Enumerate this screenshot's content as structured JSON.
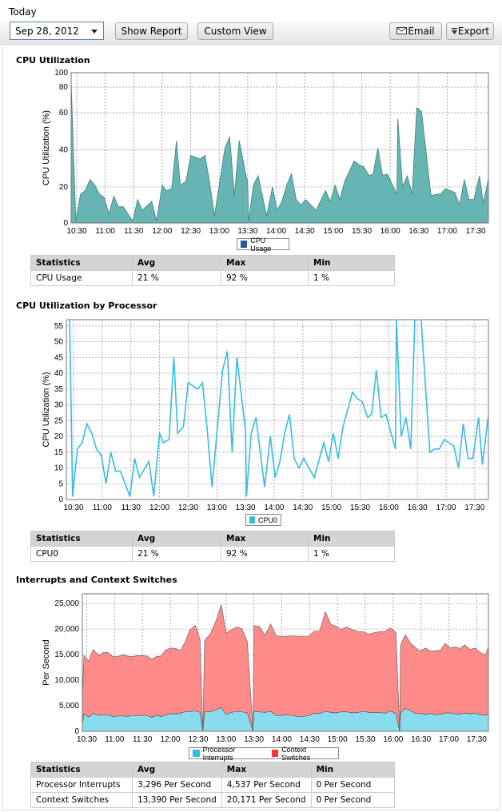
{
  "header": {
    "period_label": "Today",
    "date_value": "Sep 28, 2012",
    "show_report": "Show Report",
    "custom_view": "Custom View",
    "email": "Email",
    "export": "Export"
  },
  "colors": {
    "cpu_fill": "#66b5b3",
    "cpu_line": "#3f7f7d",
    "cpu_legend": "#1f5f99",
    "cpu0_line": "#36bde0",
    "interrupts_fill": "#88dcee",
    "interrupts_legend": "#33bbdd",
    "context_fill": "#ff8a8a",
    "context_legend": "#ff3333"
  },
  "sections": [
    {
      "title": "CPU Utilization",
      "table": {
        "headers": [
          "Statistics",
          "Avg",
          "Max",
          "Min"
        ],
        "rows": [
          [
            "CPU Usage",
            "21 %",
            "92 %",
            "1 %"
          ]
        ]
      }
    },
    {
      "title": "CPU Utilization by Processor",
      "table": {
        "headers": [
          "Statistics",
          "Avg",
          "Max",
          "Min"
        ],
        "rows": [
          [
            "CPU0",
            "21 %",
            "92 %",
            "1 %"
          ]
        ]
      }
    },
    {
      "title": "Interrupts and Context Switches",
      "table": {
        "headers": [
          "Statistics",
          "Avg",
          "Max",
          "Min"
        ],
        "rows": [
          [
            "Processor Interrupts",
            "3,296 Per Second",
            "4,537 Per Second",
            "0 Per Second"
          ],
          [
            "Context Switches",
            "13,390 Per Second",
            "20,171 Per Second",
            "0 Per Second"
          ]
        ]
      }
    }
  ],
  "chart_data": [
    {
      "type": "area",
      "ylabel": "CPU Utilization (%)",
      "ylim": [
        0,
        100
      ],
      "y_ticks": [
        0,
        20,
        40,
        60,
        80,
        100
      ],
      "y_scale": "nonlinear",
      "grid": true,
      "legend": "bottom",
      "x_ticks": [
        "10:30",
        "11:00",
        "11:30",
        "12:00",
        "12:30",
        "13:00",
        "13:30",
        "14:00",
        "14:30",
        "15:00",
        "15:30",
        "16:00",
        "16:30",
        "17:00",
        "17:30"
      ],
      "x": [
        "10:24",
        "10:29",
        "10:34",
        "10:39",
        "10:44",
        "10:49",
        "10:54",
        "10:59",
        "11:04",
        "11:09",
        "11:14",
        "11:19",
        "11:29",
        "11:34",
        "11:39",
        "11:49",
        "11:54",
        "12:00",
        "12:04",
        "12:10",
        "12:15",
        "12:19",
        "12:25",
        "12:30",
        "12:40",
        "12:45",
        "12:50",
        "12:55",
        "13:06",
        "13:11",
        "13:16",
        "13:21",
        "13:30",
        "13:31",
        "13:36",
        "13:41",
        "13:50",
        "13:56",
        "14:01",
        "14:06",
        "14:11",
        "14:16",
        "14:21",
        "14:26",
        "14:31",
        "14:42",
        "14:52",
        "14:57",
        "15:02",
        "15:07",
        "15:12",
        "15:22",
        "15:27",
        "15:32",
        "15:38",
        "15:42",
        "15:47",
        "15:52",
        "15:57",
        "16:07",
        "16:08",
        "16:13",
        "16:18",
        "16:23",
        "16:28",
        "16:33",
        "16:43",
        "16:48",
        "16:53",
        "16:58",
        "17:08",
        "17:13",
        "17:18",
        "17:23",
        "17:28",
        "17:34",
        "17:38",
        "17:44"
      ],
      "series": [
        {
          "name": "CPU Usage",
          "values": [
            92,
            1,
            16,
            18,
            24,
            21,
            16,
            14,
            5,
            15,
            9,
            9,
            1,
            13,
            7,
            12,
            1,
            21,
            18,
            19,
            45,
            21,
            23,
            37,
            35,
            37,
            22,
            4,
            41,
            47,
            15,
            45,
            22,
            1,
            21,
            26,
            4,
            20,
            7,
            12,
            21,
            27,
            13,
            10,
            13,
            7,
            18,
            12,
            21,
            13,
            23,
            34,
            32,
            31,
            26,
            27,
            41,
            26,
            27,
            16,
            57,
            20,
            26,
            16,
            64,
            61,
            15,
            16,
            16,
            19,
            17,
            10,
            24,
            13,
            13,
            26,
            11,
            26
          ]
        }
      ]
    },
    {
      "type": "line",
      "ylabel": "CPU Utilization (%)",
      "ylim": [
        0,
        57
      ],
      "y_ticks": [
        0,
        5,
        10,
        15,
        20,
        25,
        30,
        35,
        40,
        45,
        50,
        55
      ],
      "grid": true,
      "legend": "bottom",
      "x_ticks": [
        "10:30",
        "11:00",
        "11:30",
        "12:00",
        "12:30",
        "13:00",
        "13:30",
        "14:00",
        "14:30",
        "15:00",
        "15:30",
        "16:00",
        "16:30",
        "17:00",
        "17:30"
      ],
      "x": [
        "10:24",
        "10:29",
        "10:34",
        "10:39",
        "10:44",
        "10:49",
        "10:54",
        "10:59",
        "11:04",
        "11:09",
        "11:14",
        "11:19",
        "11:29",
        "11:34",
        "11:39",
        "11:49",
        "11:54",
        "12:00",
        "12:04",
        "12:10",
        "12:15",
        "12:19",
        "12:25",
        "12:30",
        "12:40",
        "12:45",
        "12:50",
        "12:55",
        "13:06",
        "13:11",
        "13:16",
        "13:21",
        "13:30",
        "13:31",
        "13:36",
        "13:41",
        "13:50",
        "13:56",
        "14:01",
        "14:06",
        "14:11",
        "14:16",
        "14:21",
        "14:26",
        "14:31",
        "14:42",
        "14:52",
        "14:57",
        "15:02",
        "15:07",
        "15:12",
        "15:22",
        "15:27",
        "15:32",
        "15:38",
        "15:42",
        "15:47",
        "15:52",
        "15:57",
        "16:07",
        "16:08",
        "16:13",
        "16:18",
        "16:23",
        "16:28",
        "16:33",
        "16:43",
        "16:48",
        "16:53",
        "16:58",
        "17:08",
        "17:13",
        "17:18",
        "17:23",
        "17:28",
        "17:34",
        "17:38",
        "17:44"
      ],
      "series": [
        {
          "name": "CPU0",
          "values": [
            92,
            1,
            16,
            18,
            24,
            21,
            16,
            14,
            5,
            15,
            9,
            9,
            1,
            13,
            7,
            12,
            1,
            21,
            18,
            19,
            45,
            21,
            23,
            37,
            35,
            37,
            22,
            4,
            41,
            47,
            15,
            45,
            22,
            1,
            21,
            26,
            4,
            20,
            7,
            12,
            21,
            27,
            13,
            10,
            13,
            7,
            18,
            12,
            21,
            13,
            23,
            34,
            32,
            31,
            26,
            27,
            41,
            26,
            27,
            16,
            57,
            20,
            26,
            16,
            64,
            61,
            15,
            16,
            16,
            19,
            17,
            10,
            24,
            13,
            13,
            26,
            11,
            26
          ]
        }
      ]
    },
    {
      "type": "area",
      "stacked": true,
      "ylabel": "Per Second",
      "ylim": [
        0,
        26900
      ],
      "y_ticks": [
        0,
        5000,
        10000,
        15000,
        20000,
        25000
      ],
      "y_tick_labels": [
        "0",
        "5,000",
        "10,000",
        "15,000",
        "20,000",
        "25,000"
      ],
      "grid": true,
      "legend": "bottom",
      "x_ticks": [
        "10:30",
        "11:00",
        "11:30",
        "12:00",
        "12:30",
        "13:00",
        "13:30",
        "14:00",
        "14:30",
        "15:00",
        "15:30",
        "16:00",
        "16:30",
        "17:00",
        "17:30"
      ],
      "x": [
        "10:24",
        "10:27",
        "10:32",
        "10:37",
        "10:43",
        "10:48",
        "10:53",
        "10:58",
        "11:03",
        "11:09",
        "11:14",
        "11:19",
        "11:24",
        "11:29",
        "11:35",
        "11:40",
        "11:45",
        "11:50",
        "11:55",
        "12:01",
        "12:06",
        "12:11",
        "12:16",
        "12:21",
        "12:27",
        "12:32",
        "12:35",
        "12:37",
        "12:43",
        "12:49",
        "12:55",
        "13:00",
        "13:06",
        "13:12",
        "13:17",
        "13:23",
        "13:29",
        "13:30",
        "13:36",
        "13:42",
        "13:48",
        "13:54",
        "14:00",
        "14:05",
        "14:11",
        "14:17",
        "14:23",
        "14:29",
        "14:35",
        "14:41",
        "14:47",
        "14:53",
        "14:58",
        "15:04",
        "15:10",
        "15:16",
        "15:22",
        "15:28",
        "15:34",
        "15:40",
        "15:46",
        "15:51",
        "15:57",
        "16:03",
        "16:07",
        "16:08",
        "16:13",
        "16:19",
        "16:24",
        "16:29",
        "16:35",
        "16:40",
        "16:45",
        "16:51",
        "16:56",
        "17:01",
        "17:07",
        "17:12",
        "17:17",
        "17:23",
        "17:28",
        "17:33",
        "17:39",
        "17:44"
      ],
      "series": [
        {
          "name": "Processor Interrupts",
          "values": [
            0,
            3400,
            2800,
            3500,
            3100,
            3200,
            3200,
            2900,
            3000,
            3000,
            2900,
            3100,
            3100,
            3100,
            3100,
            2700,
            3100,
            2900,
            3200,
            3500,
            3300,
            3600,
            3800,
            3800,
            4000,
            3700,
            0,
            3800,
            3800,
            4200,
            4600,
            3300,
            3700,
            3900,
            3800,
            3600,
            0,
            3900,
            3800,
            3700,
            3900,
            3100,
            3100,
            3200,
            3100,
            2900,
            2900,
            3100,
            3500,
            3500,
            3900,
            3700,
            3600,
            3800,
            3800,
            3600,
            3700,
            3900,
            3700,
            3700,
            3700,
            3500,
            4000,
            3500,
            0,
            3600,
            4500,
            4000,
            3500,
            3500,
            3300,
            3500,
            3200,
            3300,
            3600,
            3600,
            3400,
            3300,
            3600,
            3400,
            3600,
            3300,
            3100,
            3700
          ]
        },
        {
          "name": "Context Switches",
          "values": [
            0,
            11400,
            10900,
            12500,
            11700,
            12200,
            12200,
            11700,
            11600,
            12000,
            11800,
            11500,
            11700,
            11700,
            11600,
            11400,
            11500,
            11800,
            12700,
            12800,
            12900,
            12200,
            13700,
            16000,
            16700,
            14300,
            0,
            14000,
            15200,
            17300,
            20200,
            15900,
            16200,
            16500,
            16300,
            13900,
            0,
            16800,
            16700,
            15100,
            17100,
            15600,
            15500,
            15400,
            15600,
            15700,
            15700,
            15500,
            16100,
            16100,
            19500,
            17200,
            17000,
            16100,
            16600,
            16300,
            15800,
            15600,
            15300,
            15600,
            15800,
            16000,
            16200,
            15800,
            0,
            13200,
            14400,
            13200,
            12900,
            12200,
            13000,
            12200,
            12500,
            12600,
            13600,
            12700,
            13100,
            12900,
            13300,
            12600,
            12700,
            12200,
            11800,
            13400
          ]
        }
      ]
    }
  ]
}
